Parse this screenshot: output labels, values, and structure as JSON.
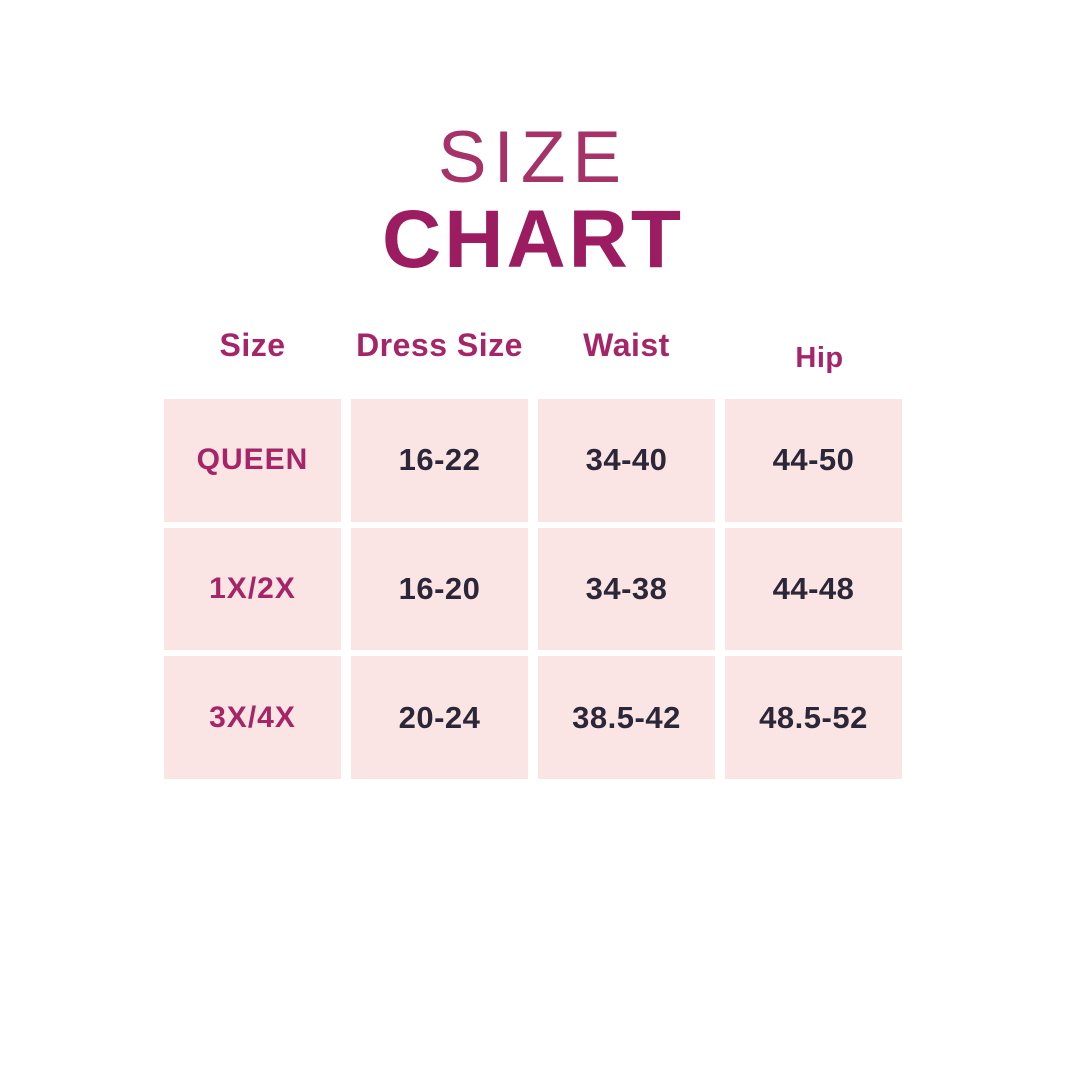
{
  "title": {
    "line1": "SIZE",
    "line2": "CHART"
  },
  "chart_data": {
    "type": "table",
    "title": "SIZE CHART",
    "columns": [
      "Size",
      "Dress Size",
      "Waist",
      "Hip"
    ],
    "rows": [
      [
        "QUEEN",
        "16-22",
        "34-40",
        "44-50"
      ],
      [
        "1X/2X",
        "16-20",
        "34-38",
        "44-48"
      ],
      [
        "3X/4X",
        "20-24",
        "38.5-42",
        "48.5-52"
      ]
    ]
  },
  "colors": {
    "background": "#FFFFFF",
    "title_size_text": "#A53368",
    "title_chart_text": "#9C1C62",
    "header_text": "#A52568",
    "row_label_text": "#A52568",
    "value_text": "#2B2738",
    "cell_background": "#FBE5E4"
  }
}
